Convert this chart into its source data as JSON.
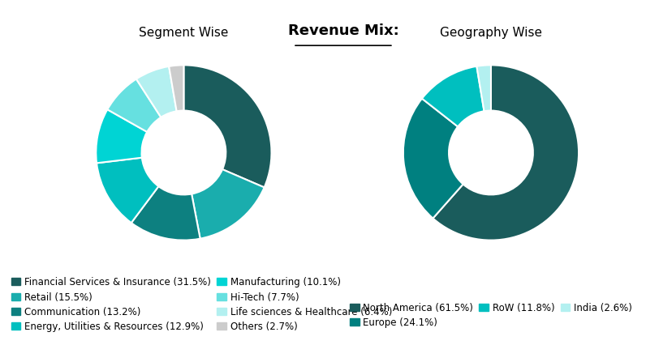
{
  "title": "Revenue Mix:",
  "title_fontsize": 13,
  "chart1_title": "Segment Wise",
  "chart2_title": "Geography Wise",
  "segment_labels": [
    "Financial Services & Insurance (31.5%)",
    "Retail (15.5%)",
    "Communication (13.2%)",
    "Energy, Utilities & Resources (12.9%)",
    "Manufacturing (10.1%)",
    "Hi-Tech (7.7%)",
    "Life sciences & Healthcare (6.4%)",
    "Others (2.7%)"
  ],
  "segment_values": [
    31.5,
    15.5,
    13.2,
    12.9,
    10.1,
    7.7,
    6.4,
    2.7
  ],
  "segment_colors": [
    "#1a5c5c",
    "#1aadad",
    "#0d8080",
    "#00bfbf",
    "#00d4d4",
    "#66e0e0",
    "#b3f0f0",
    "#cccccc"
  ],
  "geo_labels": [
    "North America (61.5%)",
    "Europe (24.1%)",
    "RoW (11.8%)",
    "India (2.6%)"
  ],
  "geo_values": [
    61.5,
    24.1,
    11.8,
    2.6
  ],
  "geo_colors": [
    "#1a5c5c",
    "#008080",
    "#00bfbf",
    "#b3f0f0"
  ],
  "background_color": "#ffffff",
  "legend_fontsize": 8.5
}
